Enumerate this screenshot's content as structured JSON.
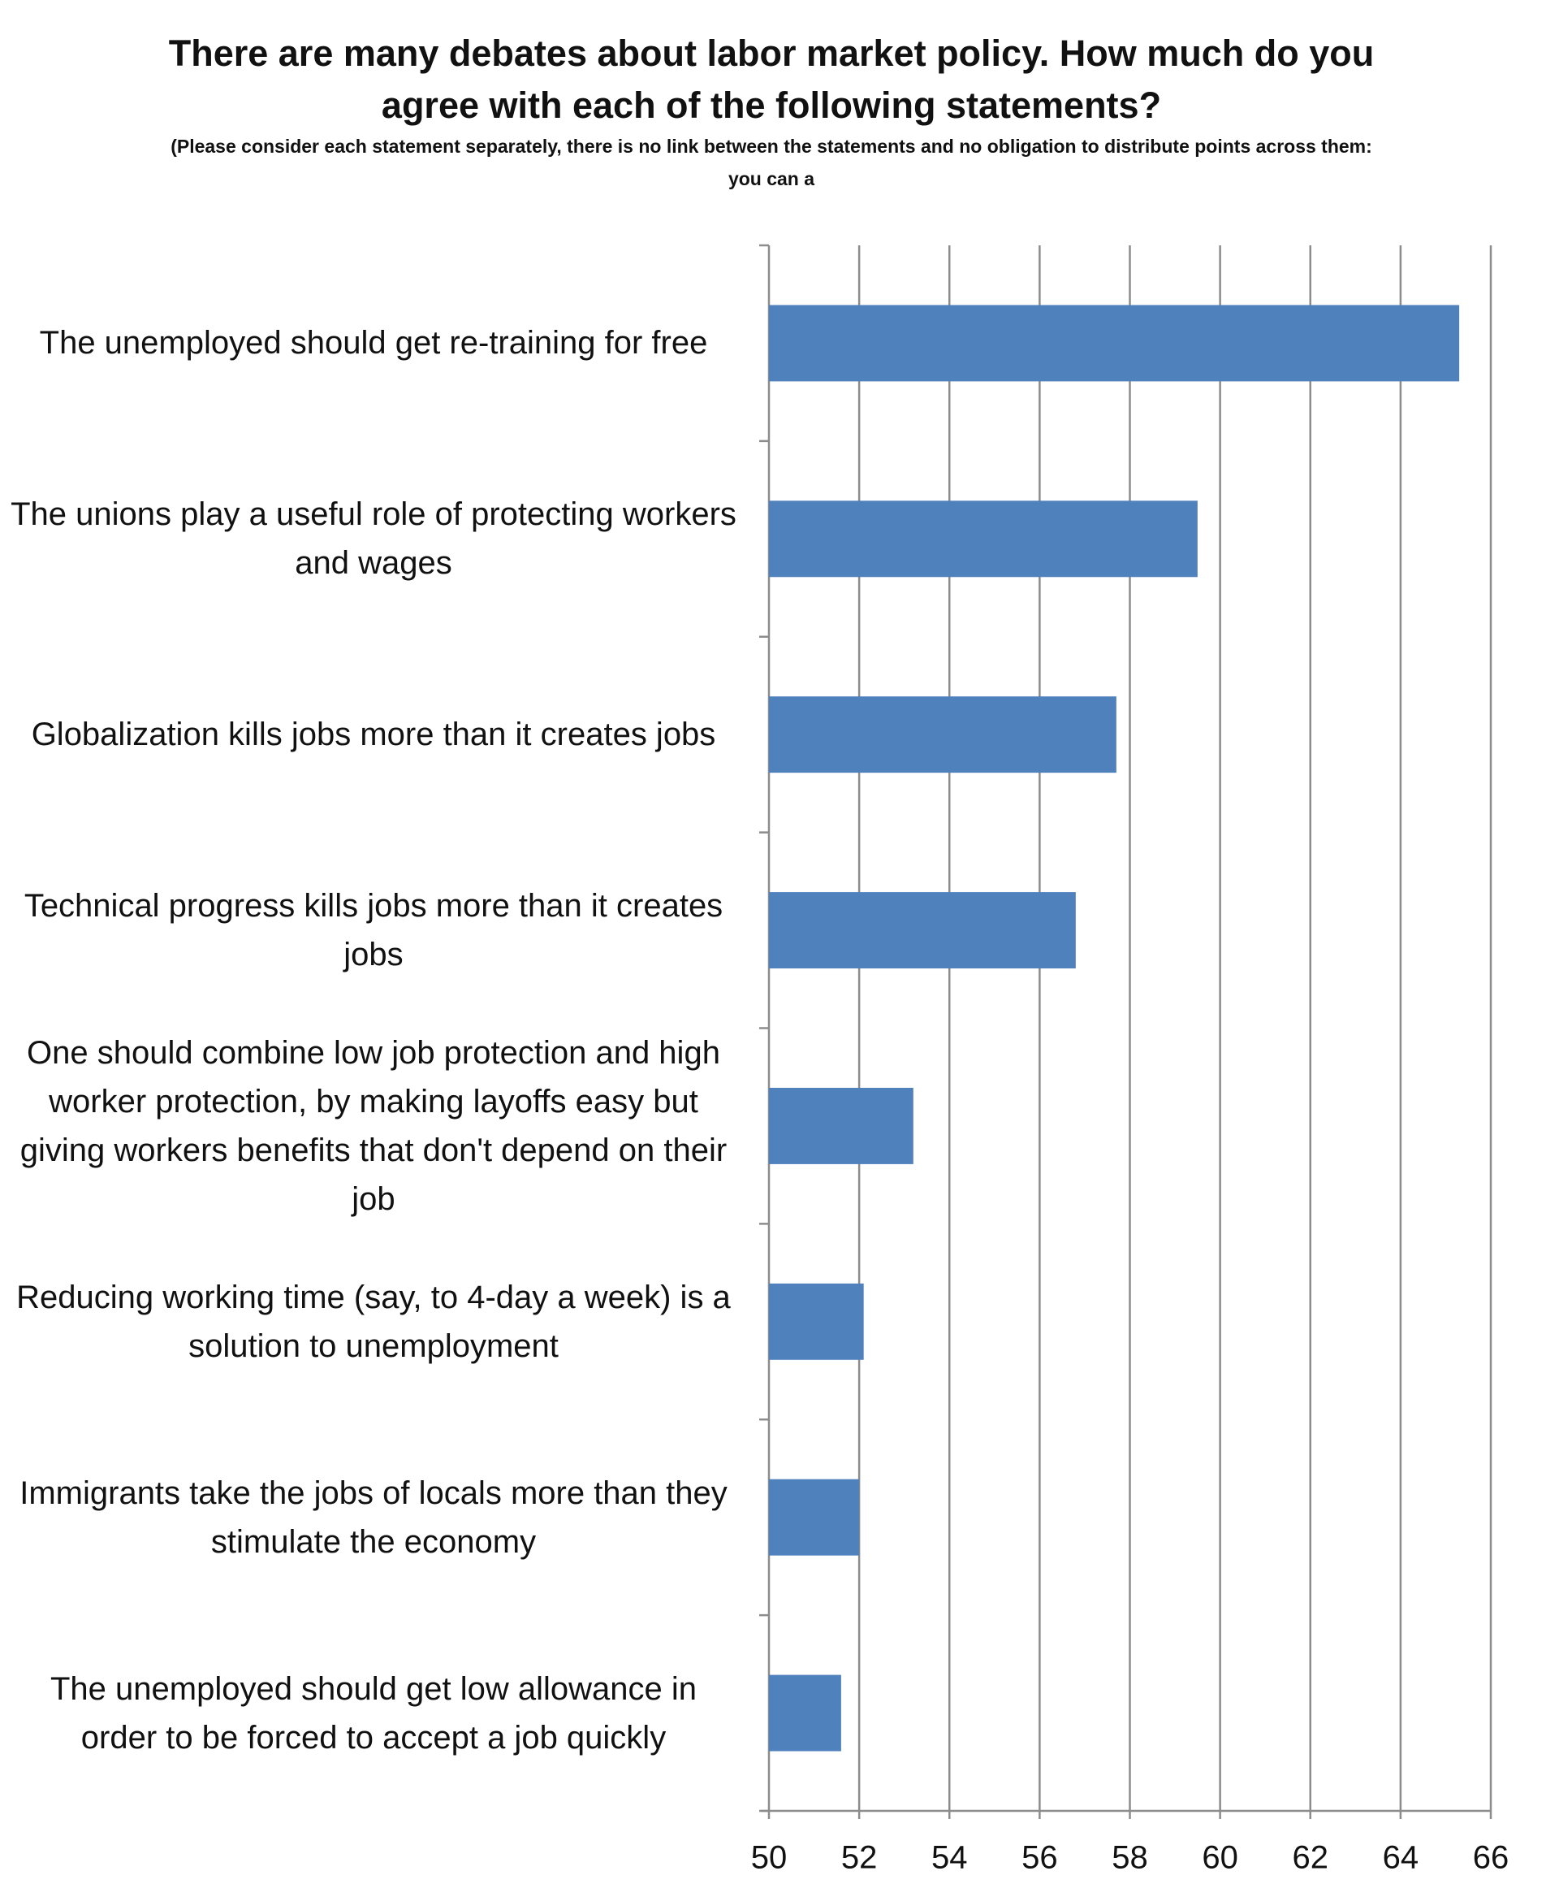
{
  "chart_data": {
    "type": "barh",
    "title": "There are many debates about labor market policy.  How much do you agree with each of the following statements?",
    "subtitle": "(Please consider each statement separately, there is no link between the statements and no obligation to distribute points across them: you can a",
    "categories": [
      "The unemployed should get re-training for free",
      "The unions play a useful role of protecting workers and wages",
      "Globalization kills jobs more than it creates jobs",
      "Technical progress kills jobs more than it creates jobs",
      "One should combine low job protection and high worker protection, by making layoffs easy but giving workers benefits that don't depend on their job",
      "Reducing working time (say, to 4-day a week) is a solution to unemployment",
      "Immigrants take the jobs of locals more than they stimulate the economy",
      "The unemployed should get low allowance in order to be forced to accept a job quickly"
    ],
    "values": [
      65.3,
      59.5,
      57.7,
      56.8,
      53.2,
      52.1,
      52.0,
      51.6
    ],
    "color": "#4f81bd",
    "xlim": [
      50,
      66
    ],
    "xticks": [
      50,
      52,
      54,
      56,
      58,
      60,
      62,
      64,
      66
    ],
    "grid": true
  }
}
